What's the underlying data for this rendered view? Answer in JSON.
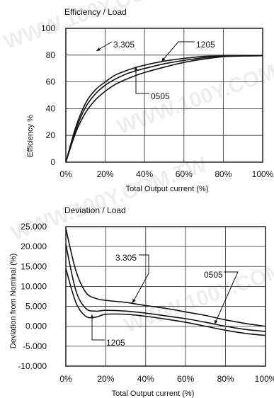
{
  "watermark": "WWW.100Y.COM.TW",
  "chart_data": [
    {
      "type": "line",
      "title": "Efficiency / Load",
      "xlabel": "Total Output current (%)",
      "ylabel": "Efficiency %",
      "xlim": [
        0,
        100
      ],
      "ylim": [
        0,
        100
      ],
      "x_ticks": [
        0,
        20,
        40,
        60,
        80,
        100
      ],
      "x_tick_labels": [
        "0%",
        "20%",
        "40%",
        "60%",
        "80%",
        "100%"
      ],
      "y_ticks": [
        0,
        20,
        40,
        60,
        80,
        100
      ],
      "y_tick_labels": [
        "0",
        "20",
        "40",
        "60",
        "80",
        "100"
      ],
      "grid": true,
      "series": [
        {
          "name": "3.305",
          "x": [
            0,
            5,
            10,
            15,
            20,
            25,
            30,
            35,
            40,
            50,
            60,
            70,
            80,
            90,
            100
          ],
          "y": [
            0,
            26,
            44,
            54,
            60,
            65,
            68,
            70.5,
            72.5,
            75.5,
            77.5,
            79,
            79.5,
            79.5,
            79.5
          ]
        },
        {
          "name": "1205",
          "x": [
            0,
            5,
            10,
            15,
            20,
            25,
            30,
            35,
            40,
            50,
            60,
            70,
            80,
            90,
            100
          ],
          "y": [
            0,
            24,
            41,
            51,
            57.5,
            62,
            65.5,
            68,
            70,
            73.5,
            76,
            78,
            79.3,
            79.5,
            79.5
          ]
        },
        {
          "name": "0505",
          "x": [
            0,
            5,
            10,
            15,
            20,
            25,
            30,
            35,
            40,
            50,
            60,
            70,
            80,
            90,
            100
          ],
          "y": [
            0,
            22,
            37,
            46.5,
            53,
            58,
            61.5,
            64.5,
            67,
            71,
            74.5,
            77,
            78.8,
            79.3,
            79.5
          ]
        }
      ],
      "annotations": [
        {
          "text": "3.305",
          "series": "3.305"
        },
        {
          "text": "1205",
          "series": "1205"
        },
        {
          "text": "0505",
          "series": "0505"
        }
      ]
    },
    {
      "type": "line",
      "title": "Deviation / Load",
      "xlabel": "Total Output current (%)",
      "ylabel": "Deviation from Nominal (%)",
      "xlim": [
        0,
        100
      ],
      "ylim": [
        -10,
        25
      ],
      "x_ticks": [
        0,
        20,
        40,
        60,
        80,
        100
      ],
      "x_tick_labels": [
        "0%",
        "20%",
        "40%",
        "60%",
        "80%",
        "100%"
      ],
      "y_ticks": [
        25,
        20,
        15,
        10,
        5,
        0,
        -5,
        -10
      ],
      "y_tick_labels": [
        "25.000",
        "20.000",
        "15.000",
        "10.000",
        "5.000",
        "0.000",
        "-5.000",
        "-10.000"
      ],
      "grid": true,
      "series": [
        {
          "name": "3.305",
          "x": [
            0,
            5,
            10,
            15,
            20,
            30,
            40,
            50,
            60,
            70,
            80,
            90,
            100
          ],
          "y": [
            24.5,
            14,
            8.5,
            7,
            6.5,
            6,
            5.2,
            4.5,
            3.6,
            2.7,
            1.6,
            0.7,
            0
          ]
        },
        {
          "name": "1205",
          "x": [
            0,
            5,
            10,
            15,
            20,
            30,
            40,
            50,
            60,
            70,
            80,
            90,
            100
          ],
          "y": [
            14.5,
            6,
            2.5,
            2.3,
            3,
            3,
            2.5,
            1.8,
            1,
            0,
            -1,
            -1.8,
            -2.3
          ]
        },
        {
          "name": "0505",
          "x": [
            0,
            5,
            10,
            15,
            20,
            30,
            40,
            50,
            60,
            70,
            80,
            90,
            100
          ],
          "y": [
            20.5,
            9,
            4.5,
            3.8,
            4,
            3.8,
            3.3,
            2.6,
            1.9,
            1,
            0,
            -0.8,
            -1.3
          ]
        }
      ],
      "annotations": [
        {
          "text": "3.305",
          "series": "3.305"
        },
        {
          "text": "0505",
          "series": "0505"
        },
        {
          "text": "1205",
          "series": "1205"
        }
      ]
    }
  ]
}
